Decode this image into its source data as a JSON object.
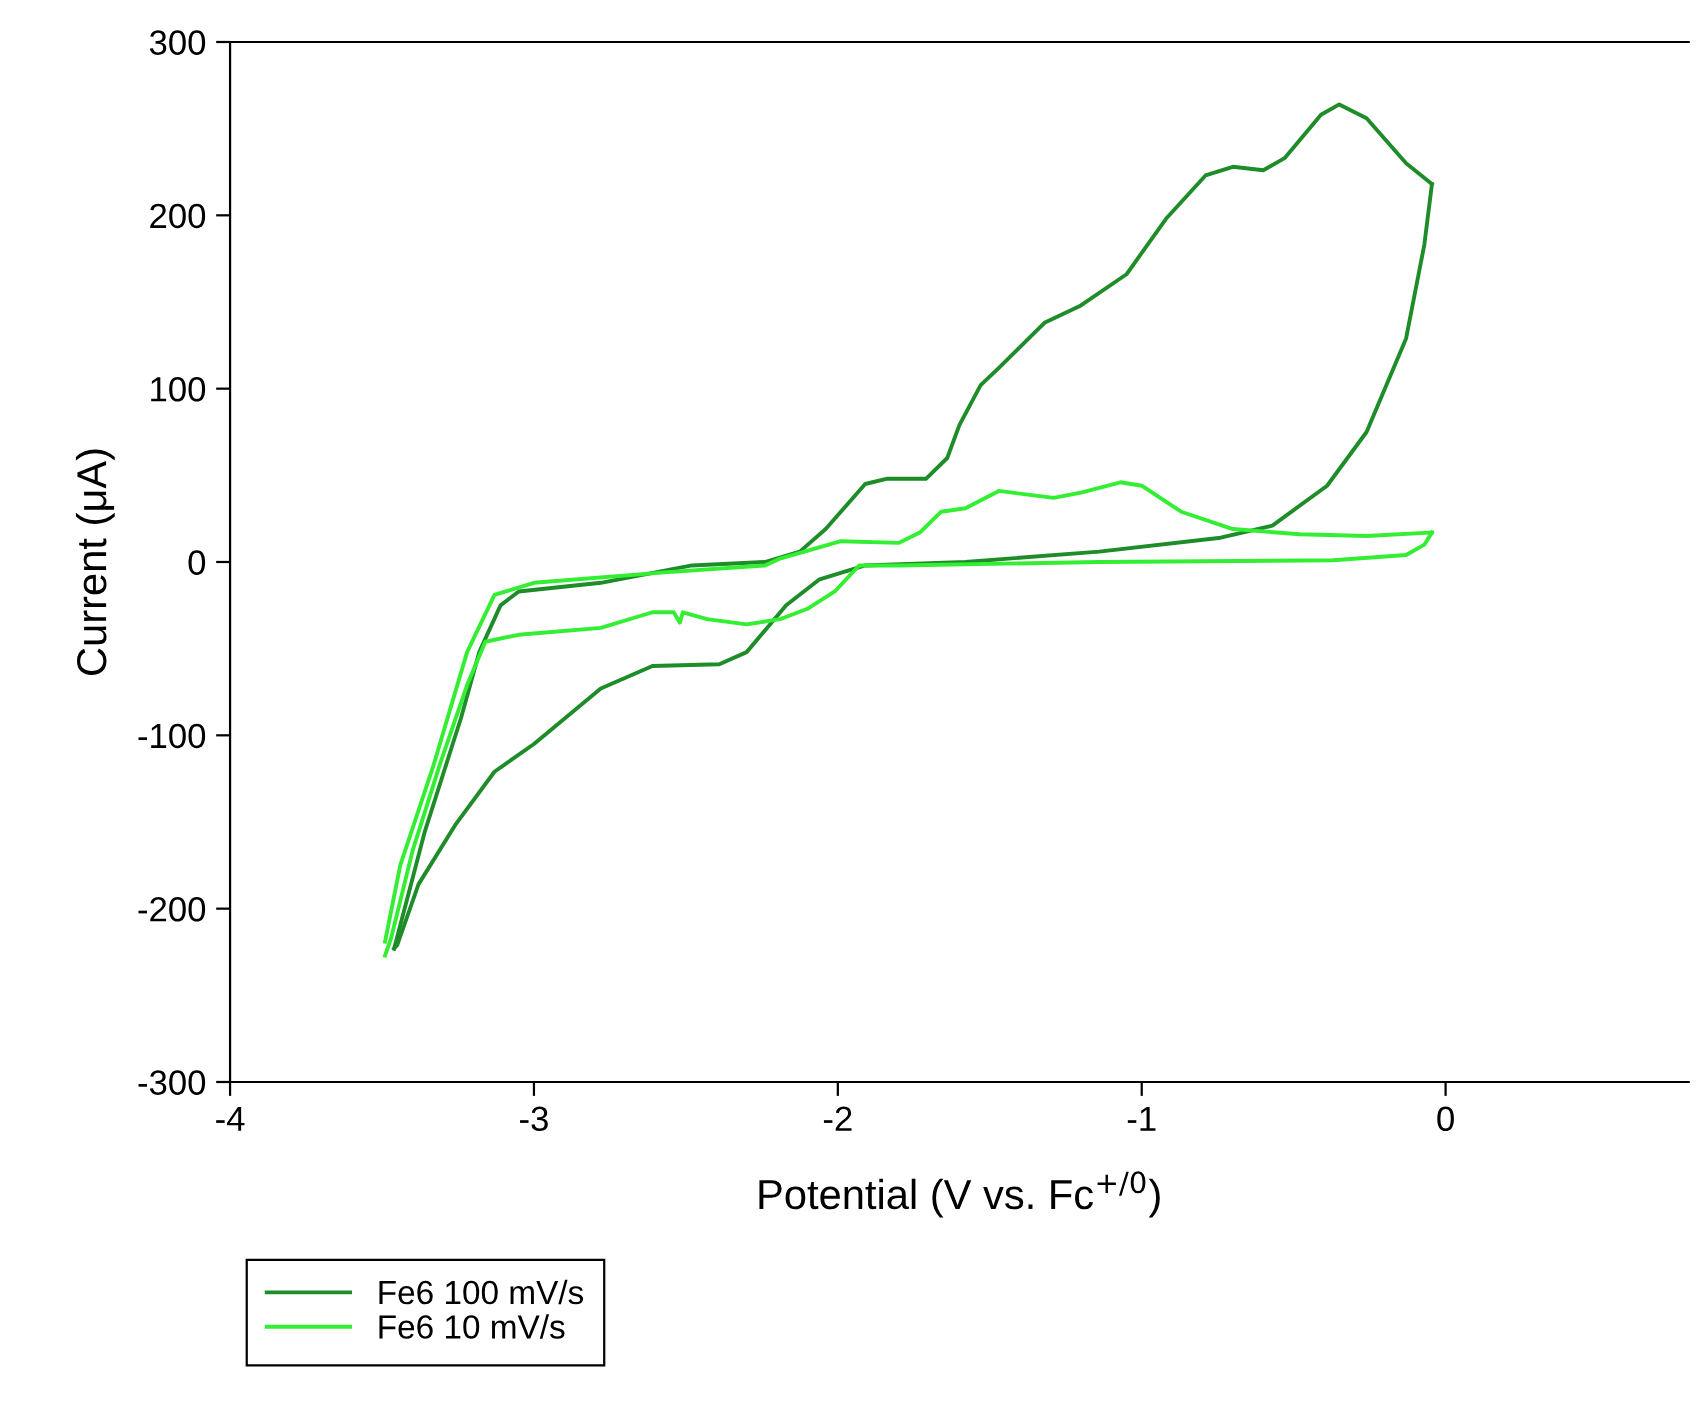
{
  "chart_data": {
    "type": "line",
    "xlabel": "Potential (V vs. Fc$^{+/0}$)",
    "ylabel": "Current (μA)",
    "xlim": [
      -4,
      0.8
    ],
    "xticks": [
      -4,
      -3,
      -2,
      -1,
      0
    ],
    "ylim": [
      -300,
      300
    ],
    "yticks": [
      -300,
      -200,
      -100,
      0,
      100,
      200,
      300
    ],
    "grid": false,
    "legend": "bottom left",
    "marker": "none",
    "line_style": "solid",
    "series": [
      {
        "name": "Fe6 100 mV/s",
        "color": "#1e8c28",
        "x": [
          -3.46,
          -3.36,
          -3.24,
          -3.18,
          -3.11,
          -3.05,
          -2.78,
          -2.48,
          -2.24,
          -2.125,
          -2.04,
          -1.91,
          -1.84,
          -1.71,
          -1.64,
          -1.6,
          -1.53,
          -1.47,
          -1.32,
          -1.2,
          -1.05,
          -0.92,
          -0.79,
          -0.7,
          -0.6,
          -0.53,
          -0.41,
          -0.35,
          -0.26,
          -0.13,
          -0.045
        ],
        "values": [
          -223,
          -156,
          -90,
          -52,
          -25,
          -17,
          -12,
          -2,
          0,
          6,
          19,
          45,
          48,
          48,
          60,
          79,
          102,
          112,
          138,
          148,
          166,
          198,
          223,
          228,
          226,
          233,
          258,
          264,
          256,
          230,
          218
        ]
      },
      {
        "color": "#1e8c28",
        "x": [
          -3.46,
          -3.45,
          -3.38,
          -3.26,
          -3.13,
          -3.0,
          -2.78,
          -2.61,
          -2.39,
          -2.3,
          -2.17,
          -2.06,
          -1.91,
          -1.58,
          -1.14,
          -0.74,
          -0.57,
          -0.39,
          -0.26,
          -0.13,
          -0.07,
          -0.045
        ],
        "values": [
          -223,
          -221,
          -186,
          -152,
          -121,
          -105,
          -73,
          -60,
          -59,
          -52,
          -25,
          -10,
          -2,
          0,
          6,
          14,
          21,
          44,
          75,
          129,
          183,
          218
        ]
      },
      {
        "name": "Fe6 10 mV/s",
        "color": "#33ee33",
        "x": [
          -3.49,
          -3.44,
          -3.33,
          -3.22,
          -3.13,
          -3.0,
          -2.57,
          -2.24,
          -2.19,
          -1.99,
          -1.8,
          -1.73,
          -1.66,
          -1.58,
          -1.47,
          -1.29,
          -1.2,
          -1.07,
          -1.0,
          -0.87,
          -0.7,
          -0.48,
          -0.26,
          -0.045
        ],
        "values": [
          -219,
          -175,
          -117,
          -52,
          -19,
          -12,
          -6,
          -2,
          2,
          12,
          11,
          17,
          29,
          31,
          41,
          37,
          40,
          46,
          44,
          29,
          19,
          16,
          15,
          17
        ]
      },
      {
        "color": "#33ee33",
        "x": [
          -3.49,
          -3.47,
          -3.4,
          -3.31,
          -3.22,
          -3.16,
          -3.05,
          -2.78,
          -2.61,
          -2.54,
          -2.52,
          -2.51,
          -2.43,
          -2.3,
          -2.19,
          -2.1,
          -2.01,
          -1.93,
          -1.8,
          -1.14,
          -0.37,
          -0.13,
          -0.07,
          -0.045
        ],
        "values": [
          -227,
          -217,
          -167,
          -117,
          -71,
          -46,
          -42,
          -38,
          -29,
          -29,
          -35,
          -29,
          -33,
          -36,
          -33,
          -27,
          -17,
          -2,
          -2,
          0,
          1,
          4,
          10,
          17
        ]
      }
    ]
  }
}
